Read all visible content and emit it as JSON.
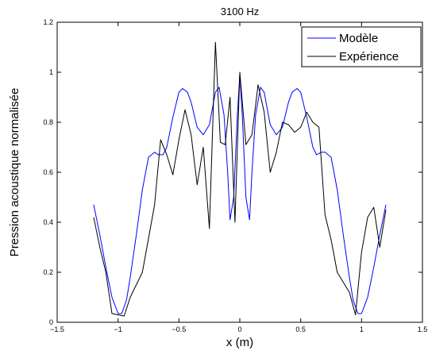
{
  "chart_data": {
    "type": "line",
    "title": "3100 Hz",
    "xlabel": "x (m)",
    "ylabel": "Pression acoustique normalisée",
    "xlim": [
      -1.5,
      1.5
    ],
    "ylim": [
      0,
      1.2
    ],
    "xticks": [
      -1.5,
      -1,
      -0.5,
      0,
      0.5,
      1,
      1.5
    ],
    "xtick_labels": [
      "−1.5",
      "−1",
      "−0.5",
      "0",
      "0.5",
      "1",
      "1.5"
    ],
    "yticks": [
      0,
      0.2,
      0.4,
      0.6,
      0.8,
      1,
      1.2
    ],
    "ytick_labels": [
      "0",
      "0.2",
      "0.4",
      "0.6",
      "0.8",
      "1",
      "1.2"
    ],
    "grid": false,
    "legend_position": "top-right",
    "series": [
      {
        "name": "Modèle",
        "color": "#0000ff",
        "x": [
          -1.2,
          -1.15,
          -1.1,
          -1.05,
          -1.0,
          -0.97,
          -0.93,
          -0.9,
          -0.85,
          -0.8,
          -0.75,
          -0.7,
          -0.67,
          -0.63,
          -0.6,
          -0.55,
          -0.5,
          -0.47,
          -0.43,
          -0.4,
          -0.35,
          -0.3,
          -0.25,
          -0.2,
          -0.17,
          -0.13,
          -0.1,
          -0.08,
          -0.05,
          -0.02,
          0.0,
          0.02,
          0.05,
          0.08,
          0.1,
          0.13,
          0.17,
          0.2,
          0.25,
          0.3,
          0.35,
          0.4,
          0.43,
          0.47,
          0.5,
          0.55,
          0.6,
          0.63,
          0.67,
          0.7,
          0.75,
          0.8,
          0.85,
          0.9,
          0.93,
          0.97,
          1.0,
          1.05,
          1.1,
          1.15,
          1.2
        ],
        "y": [
          0.47,
          0.35,
          0.22,
          0.1,
          0.035,
          0.035,
          0.09,
          0.18,
          0.35,
          0.53,
          0.66,
          0.68,
          0.67,
          0.67,
          0.7,
          0.82,
          0.92,
          0.935,
          0.92,
          0.88,
          0.78,
          0.75,
          0.79,
          0.92,
          0.94,
          0.83,
          0.6,
          0.41,
          0.5,
          0.83,
          0.99,
          0.83,
          0.5,
          0.41,
          0.6,
          0.83,
          0.94,
          0.92,
          0.79,
          0.75,
          0.78,
          0.88,
          0.92,
          0.935,
          0.92,
          0.82,
          0.7,
          0.67,
          0.68,
          0.68,
          0.66,
          0.53,
          0.35,
          0.18,
          0.09,
          0.035,
          0.035,
          0.1,
          0.22,
          0.35,
          0.47
        ]
      },
      {
        "name": "Expérience",
        "color": "#000000",
        "x": [
          -1.2,
          -1.15,
          -1.1,
          -1.05,
          -1.0,
          -0.95,
          -0.9,
          -0.8,
          -0.7,
          -0.65,
          -0.6,
          -0.55,
          -0.5,
          -0.45,
          -0.4,
          -0.35,
          -0.3,
          -0.25,
          -0.2,
          -0.16,
          -0.12,
          -0.08,
          -0.04,
          0.0,
          0.05,
          0.1,
          0.15,
          0.2,
          0.25,
          0.3,
          0.35,
          0.4,
          0.45,
          0.5,
          0.55,
          0.6,
          0.65,
          0.7,
          0.75,
          0.8,
          0.85,
          0.9,
          0.95,
          1.0,
          1.05,
          1.1,
          1.15,
          1.2
        ],
        "y": [
          0.42,
          0.3,
          0.2,
          0.035,
          0.03,
          0.025,
          0.1,
          0.2,
          0.47,
          0.73,
          0.67,
          0.59,
          0.73,
          0.85,
          0.75,
          0.55,
          0.7,
          0.375,
          1.12,
          0.72,
          0.71,
          0.9,
          0.4,
          1.0,
          0.71,
          0.75,
          0.95,
          0.84,
          0.6,
          0.68,
          0.8,
          0.79,
          0.76,
          0.78,
          0.84,
          0.8,
          0.78,
          0.43,
          0.33,
          0.2,
          0.16,
          0.12,
          0.03,
          0.28,
          0.42,
          0.46,
          0.3,
          0.45
        ]
      }
    ]
  }
}
